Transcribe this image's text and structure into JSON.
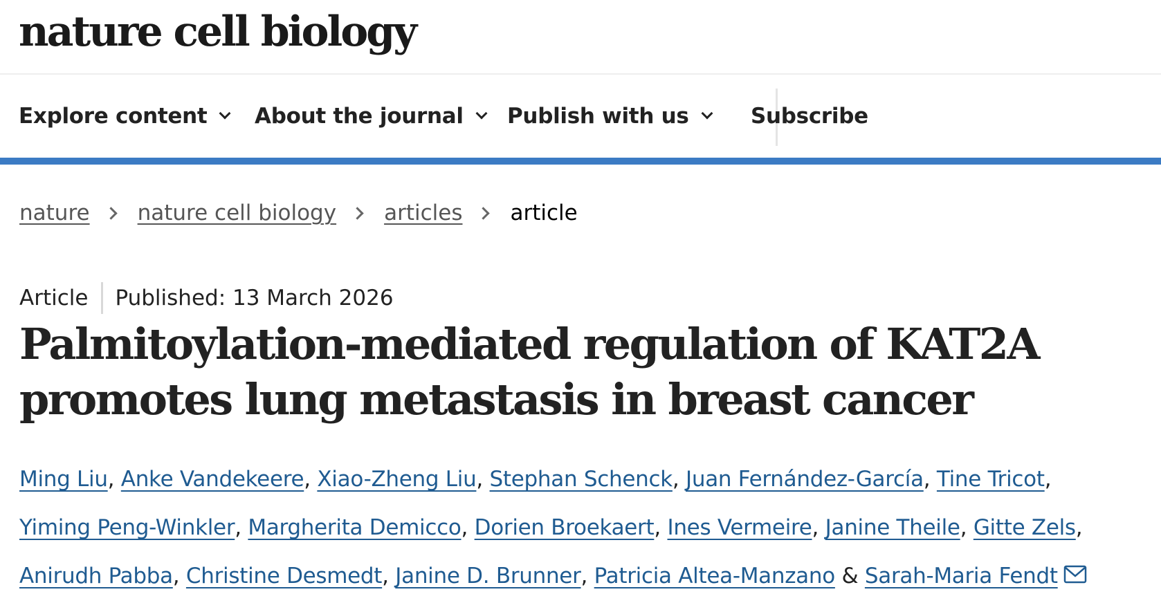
{
  "header": {
    "journal_name": "nature cell biology"
  },
  "nav": {
    "items": [
      {
        "label": "Explore content"
      },
      {
        "label": "About the journal"
      },
      {
        "label": "Publish with us"
      }
    ],
    "subscribe_label": "Subscribe"
  },
  "breadcrumb": {
    "items": [
      "nature",
      "nature cell biology",
      "articles"
    ],
    "current": "article"
  },
  "article": {
    "type": "Article",
    "published": "Published: 13 March 2026",
    "title": "Palmitoylation-mediated regulation of KAT2A promotes lung metastasis in breast cancer"
  },
  "authors": {
    "line1": [
      "Ming Liu",
      "Anke Vandekeere",
      "Xiao-Zheng Liu",
      "Stephan Schenck",
      "Juan Fernández-García",
      "Tine Tricot"
    ],
    "line2": [
      "Yiming Peng-Winkler",
      "Margherita Demicco",
      "Dorien Broekaert",
      "Ines Vermeire",
      "Janine Theile",
      "Gitte Zels"
    ],
    "line3": [
      "Anirudh Pabba",
      "Christine Desmedt",
      "Janine D. Brunner",
      "Patricia Altea-Manzano"
    ],
    "separator": ",",
    "ampersand": "&",
    "last": "Sarah-Maria Fendt",
    "contact_icon": "mail-icon"
  },
  "colors": {
    "accent_bar": "#3b7bc4",
    "author_link": "#1f5b91",
    "text": "#222222"
  }
}
